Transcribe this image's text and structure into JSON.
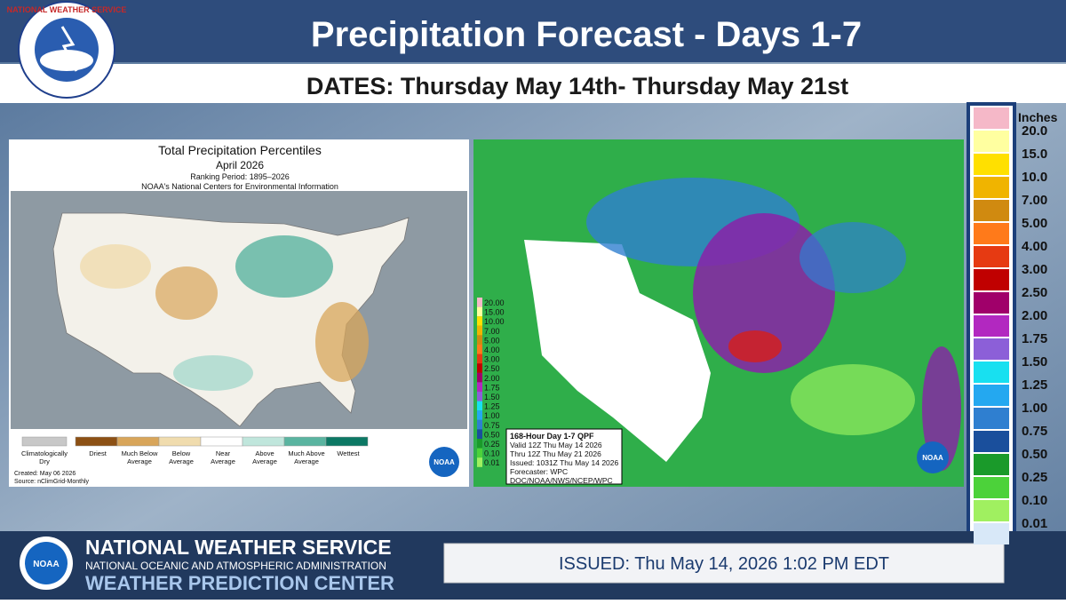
{
  "header": {
    "logo_text": "NATIONAL WEATHER SERVICE",
    "title": "Precipitation Forecast - Days 1-7",
    "subtitle": "DATES: Thursday May 14th- Thursday May 21st"
  },
  "left_map": {
    "title": "Total Precipitation Percentiles",
    "period": "April 2026",
    "ranking": "Ranking Period: 1895–2026",
    "source_org": "NOAA's National Centers for Environmental Information",
    "legend": [
      [
        "Climatologically",
        "Dry"
      ],
      [
        "Driest"
      ],
      [
        "Much Below",
        "Average"
      ],
      [
        "Below",
        "Average"
      ],
      [
        "Near",
        "Average"
      ],
      [
        "Above",
        "Average"
      ],
      [
        "Much Above",
        "Average"
      ],
      [
        "Wettest"
      ]
    ],
    "created": "Created: May 06 2026",
    "source": "Source: nClimGrid-Monthly",
    "logo": "NOAA"
  },
  "right_map": {
    "scale": [
      "20.00",
      "15.00",
      "10.00",
      "7.00",
      "5.00",
      "4.00",
      "3.00",
      "2.50",
      "2.00",
      "1.75",
      "1.50",
      "1.25",
      "1.00",
      "0.75",
      "0.50",
      "0.25",
      "0.10",
      "0.01"
    ],
    "info": [
      "168-Hour Day 1-7 QPF",
      "Valid 12Z Thu May 14 2026",
      "Thru 12Z Thu May 21 2026",
      "Issued: 1031Z Thu May 14 2026",
      "Forecaster: WPC",
      "DOC/NOAA/NWS/NCEP/WPC"
    ],
    "logo": "NOAA"
  },
  "legend": {
    "title": "Inches",
    "items": [
      "20.0",
      "15.0",
      "10.0",
      "7.00",
      "5.00",
      "4.00",
      "3.00",
      "2.50",
      "2.00",
      "1.75",
      "1.50",
      "1.25",
      "1.00",
      "0.75",
      "0.50",
      "0.25",
      "0.10",
      "0.01"
    ]
  },
  "footer": {
    "org": "NATIONAL WEATHER SERVICE",
    "agency": "NATIONAL OCEANIC AND ATMOSPHERIC ADMINISTRATION",
    "center": "WEATHER PREDICTION CENTER",
    "logo": "NOAA",
    "issued": "ISSUED:  Thu May 14, 2026 1:02 PM EDT"
  }
}
